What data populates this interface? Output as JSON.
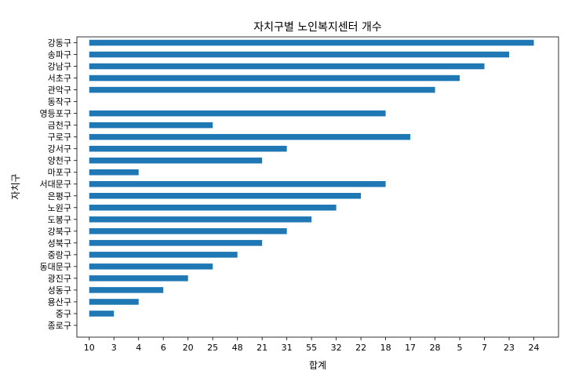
{
  "chart_data": {
    "type": "bar",
    "orientation": "horizontal",
    "title": "자치구별 노인복지센터 개수",
    "xlabel": "합계",
    "ylabel": "자치구",
    "categories": [
      "강동구",
      "송파구",
      "강남구",
      "서초구",
      "관악구",
      "동작구",
      "영등포구",
      "금천구",
      "구로구",
      "강서구",
      "양천구",
      "마포구",
      "서대문구",
      "은평구",
      "노원구",
      "도봉구",
      "강북구",
      "성북구",
      "중랑구",
      "동대문구",
      "광진구",
      "성동구",
      "용산구",
      "중구",
      "종로구"
    ],
    "values": [
      24,
      23,
      7,
      5,
      28,
      0,
      18,
      25,
      17,
      31,
      21,
      4,
      18,
      22,
      32,
      55,
      31,
      21,
      48,
      25,
      20,
      6,
      4,
      3,
      10
    ],
    "x_tick_labels": [
      "10",
      "3",
      "4",
      "6",
      "20",
      "25",
      "48",
      "21",
      "31",
      "55",
      "32",
      "22",
      "18",
      "17",
      "28",
      "5",
      "7",
      "23",
      "24"
    ],
    "bar_color": "#1f77b4",
    "grid": false,
    "legend": "none"
  }
}
